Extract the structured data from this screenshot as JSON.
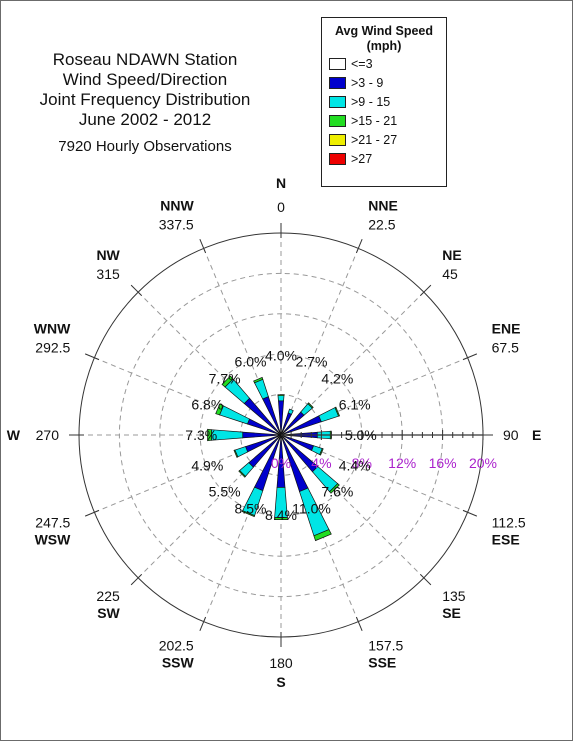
{
  "title": {
    "lines": [
      "Roseau NDAWN Station",
      "Wind Speed/Direction",
      "Joint Frequency Distribution",
      "June 2002 - 2012"
    ],
    "subtitle": "7920 Hourly Observations"
  },
  "legend": {
    "title_line1": "Avg Wind Speed",
    "title_line2": "(mph)",
    "items": [
      {
        "label": "<=3",
        "color": "#ffffff"
      },
      {
        "label": ">3 - 9",
        "color": "#0000cc"
      },
      {
        "label": ">9 - 15",
        "color": "#00e5e5"
      },
      {
        "label": ">15 - 21",
        "color": "#22dd22"
      },
      {
        "label": ">21 - 27",
        "color": "#eeee00"
      },
      {
        "label": ">27",
        "color": "#ee0000"
      }
    ]
  },
  "chart_data": {
    "type": "wind_rose",
    "radial_ticks": [
      "0%",
      "4%",
      "8%",
      "12%",
      "16%",
      "20%"
    ],
    "radial_max": 20,
    "tick_color": "#aa22cc",
    "directions": [
      {
        "abbr": "N",
        "deg": "0",
        "pct": "4.0%"
      },
      {
        "abbr": "NNE",
        "deg": "22.5",
        "pct": "2.7%"
      },
      {
        "abbr": "NE",
        "deg": "45",
        "pct": "4.2%"
      },
      {
        "abbr": "ENE",
        "deg": "67.5",
        "pct": "6.1%"
      },
      {
        "abbr": "E",
        "deg": "90",
        "pct": "5.0%"
      },
      {
        "abbr": "ESE",
        "deg": "112.5",
        "pct": "4.4%"
      },
      {
        "abbr": "SE",
        "deg": "135",
        "pct": "7.6%"
      },
      {
        "abbr": "SSE",
        "deg": "157.5",
        "pct": "11.0%"
      },
      {
        "abbr": "S",
        "deg": "180",
        "pct": "8.4%"
      },
      {
        "abbr": "SSW",
        "deg": "202.5",
        "pct": "8.5%"
      },
      {
        "abbr": "SW",
        "deg": "225",
        "pct": "5.5%"
      },
      {
        "abbr": "WSW",
        "deg": "247.5",
        "pct": "4.9%"
      },
      {
        "abbr": "W",
        "deg": "270",
        "pct": "7.3%"
      },
      {
        "abbr": "WNW",
        "deg": "292.5",
        "pct": "6.8%"
      },
      {
        "abbr": "NW",
        "deg": "315",
        "pct": "7.7%"
      },
      {
        "abbr": "NNW",
        "deg": "337.5",
        "pct": "6.0%"
      }
    ],
    "speed_bins": [
      ">3 - 9",
      ">9 - 15",
      ">15 - 21"
    ],
    "segments": [
      [
        3.4,
        0.5,
        0.1
      ],
      [
        2.3,
        0.4,
        0.0
      ],
      [
        3.0,
        1.1,
        0.1
      ],
      [
        4.2,
        1.8,
        0.1
      ],
      [
        3.6,
        1.3,
        0.1
      ],
      [
        3.4,
        0.9,
        0.1
      ],
      [
        4.8,
        2.6,
        0.2
      ],
      [
        5.9,
        4.6,
        0.5
      ],
      [
        5.2,
        3.0,
        0.2
      ],
      [
        5.8,
        2.6,
        0.1
      ],
      [
        4.2,
        1.2,
        0.1
      ],
      [
        3.7,
        1.1,
        0.1
      ],
      [
        3.8,
        3.1,
        0.4
      ],
      [
        3.5,
        2.9,
        0.4
      ],
      [
        4.8,
        2.5,
        0.4
      ],
      [
        4.0,
        1.8,
        0.2
      ]
    ]
  }
}
